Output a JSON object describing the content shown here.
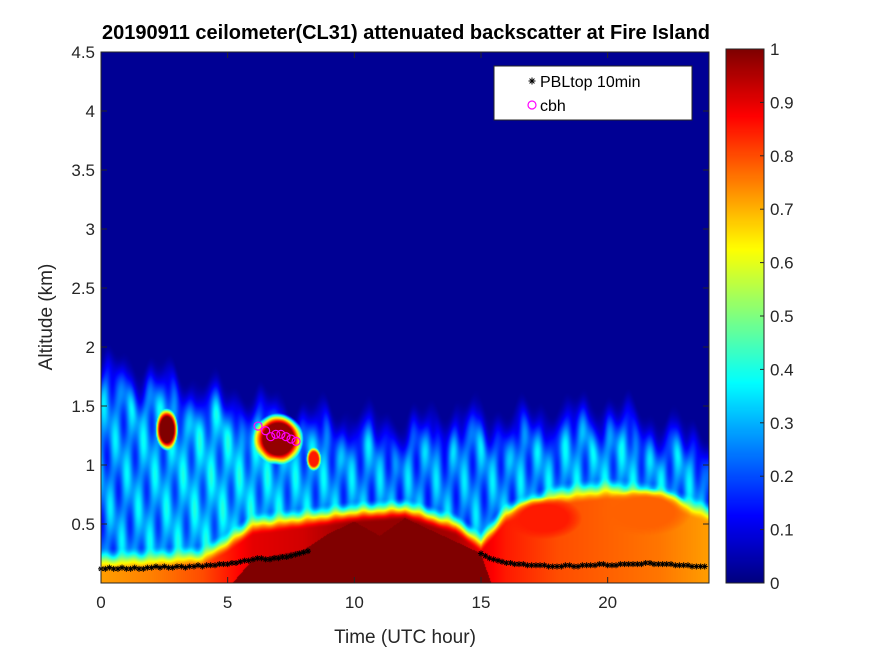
{
  "chart_data": {
    "type": "heatmap",
    "title": "20190911 ceilometer(CL31) attenuated backscatter at Fire Island",
    "xlabel": "Time (UTC hour)",
    "ylabel": "Altitude (km)",
    "xlim": [
      0,
      24
    ],
    "ylim": [
      0,
      4.5
    ],
    "x_ticks": [
      0,
      5,
      10,
      15,
      20
    ],
    "x_tick_labels": [
      "0",
      "5",
      "10",
      "15",
      "20"
    ],
    "y_ticks": [
      0.5,
      1,
      1.5,
      2,
      2.5,
      3,
      3.5,
      4,
      4.5
    ],
    "y_tick_labels": [
      "0.5",
      "1",
      "1.5",
      "2",
      "2.5",
      "3",
      "3.5",
      "4",
      "4.5"
    ],
    "colorbar": {
      "colormap": "jet",
      "range": [
        0,
        1
      ],
      "ticks": [
        0,
        0.1,
        0.2,
        0.3,
        0.4,
        0.5,
        0.6,
        0.7,
        0.8,
        0.9,
        1
      ],
      "tick_labels": [
        "0",
        "0.1",
        "0.2",
        "0.3",
        "0.4",
        "0.5",
        "0.6",
        "0.7",
        "0.8",
        "0.9",
        "1"
      ]
    },
    "legend": {
      "placement": "top-right",
      "entries": [
        {
          "label": "PBLtop 10min",
          "marker": "asterisk",
          "color": "#000000"
        },
        {
          "label": "cbh",
          "marker": "circle",
          "color": "#ff00ff"
        }
      ]
    },
    "series": [
      {
        "name": "PBLtop 10min",
        "x": [
          0.0,
          0.17,
          0.33,
          0.5,
          0.67,
          0.83,
          1.0,
          1.17,
          1.33,
          1.5,
          1.67,
          1.83,
          2.0,
          2.17,
          2.33,
          2.5,
          2.67,
          2.83,
          3.0,
          3.17,
          3.33,
          3.5,
          3.67,
          3.83,
          4.0,
          4.17,
          4.33,
          4.5,
          4.67,
          4.83,
          5.0,
          5.17,
          5.33,
          5.5,
          5.67,
          5.83,
          6.0,
          6.17,
          6.33,
          6.5,
          6.67,
          6.83,
          7.0,
          7.17,
          7.33,
          7.5,
          7.67,
          7.83,
          8.0,
          8.17,
          15.0,
          15.17,
          15.33,
          15.5,
          15.67,
          15.83,
          16.0,
          16.17,
          16.33,
          16.5,
          16.67,
          16.83,
          17.0,
          17.17,
          17.33,
          17.5,
          17.67,
          17.83,
          18.0,
          18.17,
          18.33,
          18.5,
          18.67,
          18.83,
          19.0,
          19.17,
          19.33,
          19.5,
          19.67,
          19.83,
          20.0,
          20.17,
          20.33,
          20.5,
          20.67,
          20.83,
          21.0,
          21.17,
          21.33,
          21.5,
          21.67,
          21.83,
          22.0,
          22.17,
          22.33,
          22.5,
          22.67,
          22.83,
          23.0,
          23.17,
          23.33,
          23.5,
          23.67,
          23.83
        ],
        "y": [
          0.12,
          0.12,
          0.13,
          0.12,
          0.12,
          0.13,
          0.12,
          0.12,
          0.13,
          0.12,
          0.12,
          0.13,
          0.13,
          0.14,
          0.13,
          0.14,
          0.13,
          0.13,
          0.14,
          0.14,
          0.13,
          0.14,
          0.14,
          0.15,
          0.14,
          0.15,
          0.15,
          0.15,
          0.16,
          0.16,
          0.16,
          0.17,
          0.17,
          0.18,
          0.19,
          0.19,
          0.2,
          0.21,
          0.21,
          0.2,
          0.2,
          0.21,
          0.21,
          0.22,
          0.22,
          0.23,
          0.24,
          0.25,
          0.26,
          0.27,
          0.25,
          0.23,
          0.21,
          0.2,
          0.19,
          0.18,
          0.17,
          0.17,
          0.16,
          0.16,
          0.16,
          0.15,
          0.15,
          0.15,
          0.15,
          0.15,
          0.14,
          0.14,
          0.14,
          0.14,
          0.15,
          0.15,
          0.14,
          0.14,
          0.15,
          0.15,
          0.15,
          0.15,
          0.16,
          0.16,
          0.15,
          0.15,
          0.15,
          0.16,
          0.16,
          0.16,
          0.16,
          0.16,
          0.16,
          0.17,
          0.17,
          0.16,
          0.16,
          0.16,
          0.16,
          0.16,
          0.15,
          0.15,
          0.15,
          0.15,
          0.14,
          0.14,
          0.14,
          0.14
        ]
      },
      {
        "name": "cbh",
        "x": [
          6.2,
          6.5,
          6.7,
          6.9,
          7.1,
          7.3,
          7.5,
          7.7
        ],
        "y": [
          1.33,
          1.29,
          1.24,
          1.26,
          1.26,
          1.24,
          1.22,
          1.2
        ]
      }
    ],
    "fields": {
      "background_level": 0.02,
      "boundary_layer": [
        {
          "x": 0,
          "top": 1.95,
          "mid_level": 0.25
        },
        {
          "x": 2,
          "top": 1.9,
          "mid_level": 0.28
        },
        {
          "x": 4,
          "top": 1.75,
          "mid_level": 0.3
        },
        {
          "x": 6,
          "top": 1.65,
          "mid_level": 0.3
        },
        {
          "x": 8,
          "top": 1.55,
          "mid_level": 0.28
        },
        {
          "x": 10,
          "top": 1.5,
          "mid_level": 0.26
        },
        {
          "x": 12,
          "top": 1.45,
          "mid_level": 0.25
        },
        {
          "x": 14,
          "top": 1.55,
          "mid_level": 0.25
        },
        {
          "x": 16,
          "top": 1.5,
          "mid_level": 0.26
        },
        {
          "x": 18,
          "top": 1.55,
          "mid_level": 0.27
        },
        {
          "x": 20,
          "top": 1.6,
          "mid_level": 0.28
        },
        {
          "x": 22,
          "top": 1.45,
          "mid_level": 0.27
        },
        {
          "x": 24,
          "top": 1.35,
          "mid_level": 0.26
        }
      ],
      "surface_layer": [
        {
          "x": 0,
          "top": 0.15,
          "level": 0.72
        },
        {
          "x": 2,
          "top": 0.16,
          "level": 0.75
        },
        {
          "x": 4,
          "top": 0.18,
          "level": 0.8
        },
        {
          "x": 5,
          "top": 0.3,
          "level": 0.85
        },
        {
          "x": 6,
          "top": 0.45,
          "level": 0.9
        },
        {
          "x": 8,
          "top": 0.5,
          "level": 0.92
        },
        {
          "x": 10,
          "top": 0.55,
          "level": 0.98
        },
        {
          "x": 12,
          "top": 0.58,
          "level": 0.98
        },
        {
          "x": 14,
          "top": 0.45,
          "level": 0.96
        },
        {
          "x": 15,
          "top": 0.3,
          "level": 0.9
        },
        {
          "x": 16,
          "top": 0.55,
          "level": 0.85
        },
        {
          "x": 18,
          "top": 0.7,
          "level": 0.8
        },
        {
          "x": 20,
          "top": 0.75,
          "level": 0.78
        },
        {
          "x": 22,
          "top": 0.7,
          "level": 0.76
        },
        {
          "x": 24,
          "top": 0.55,
          "level": 0.72
        }
      ],
      "saturated_core": [
        {
          "x": 5.2,
          "top": 0.0
        },
        {
          "x": 6,
          "top": 0.2
        },
        {
          "x": 8,
          "top": 0.28
        },
        {
          "x": 9,
          "top": 0.42
        },
        {
          "x": 10,
          "top": 0.52
        },
        {
          "x": 11,
          "top": 0.4
        },
        {
          "x": 12,
          "top": 0.55
        },
        {
          "x": 13,
          "top": 0.45
        },
        {
          "x": 14,
          "top": 0.35
        },
        {
          "x": 15,
          "top": 0.25
        },
        {
          "x": 15.4,
          "top": 0.0
        }
      ],
      "blobs": [
        {
          "x": 2.6,
          "y": 1.3,
          "sx": 0.45,
          "sy": 0.18,
          "level": 1.0
        },
        {
          "x": 7.0,
          "y": 1.22,
          "sx": 1.0,
          "sy": 0.22,
          "level": 0.98
        },
        {
          "x": 8.4,
          "y": 1.05,
          "sx": 0.3,
          "sy": 0.1,
          "level": 0.85
        },
        {
          "x": 17.5,
          "y": 0.55,
          "sx": 1.5,
          "sy": 0.18,
          "level": 0.85
        },
        {
          "x": 21.5,
          "y": 0.6,
          "sx": 1.8,
          "sy": 0.2,
          "level": 0.78
        }
      ]
    }
  }
}
